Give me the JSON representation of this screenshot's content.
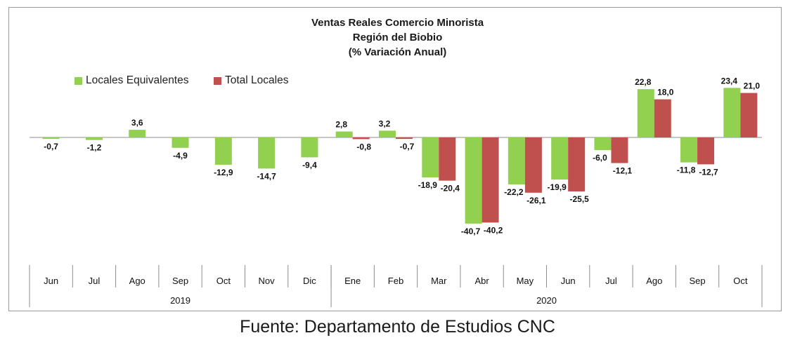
{
  "chart_data": {
    "type": "bar",
    "title": "Ventas Reales Comercio Minorista",
    "subtitle": "Región del Biobio",
    "unit_note": "(% Variación Anual)",
    "categories": [
      "Jun",
      "Jul",
      "Ago",
      "Sep",
      "Oct",
      "Nov",
      "Dic",
      "Ene",
      "Feb",
      "Mar",
      "Abr",
      "May",
      "Jun",
      "Jul",
      "Ago",
      "Sep",
      "Oct"
    ],
    "year_groups": [
      {
        "label": "2019",
        "count": 7
      },
      {
        "label": "2020",
        "count": 10
      }
    ],
    "series": [
      {
        "name": "Locales Equivalentes",
        "color": "#92d050",
        "values": [
          -0.7,
          -1.2,
          3.6,
          -4.9,
          -12.9,
          -14.7,
          -9.4,
          2.8,
          3.2,
          -18.9,
          -40.7,
          -22.2,
          -19.9,
          -6.0,
          22.8,
          -11.8,
          23.4
        ],
        "labels": [
          "-0,7",
          "-1,2",
          "3,6",
          "-4,9",
          "-12,9",
          "-14,7",
          "-9,4",
          "2,8",
          "3,2",
          "-18,9",
          "-40,7",
          "-22,2",
          "-19,9",
          "-6,0",
          "22,8",
          "-11,8",
          "23,4"
        ]
      },
      {
        "name": "Total Locales",
        "color": "#c0504d",
        "values": [
          null,
          null,
          null,
          null,
          null,
          null,
          null,
          -0.8,
          -0.7,
          -20.4,
          -40.2,
          -26.1,
          -25.5,
          -12.1,
          18.0,
          -12.7,
          21.0
        ],
        "labels": [
          "",
          "",
          "",
          "",
          "",
          "",
          "",
          "-0,8",
          "-0,7",
          "-20,4",
          "-40,2",
          "-26,1",
          "-25,5",
          "-12,1",
          "18,0",
          "-12,7",
          "21,0"
        ]
      }
    ],
    "legend_position": "top-left",
    "grid": false
  },
  "source_note": "Fuente: Departamento de Estudios CNC"
}
